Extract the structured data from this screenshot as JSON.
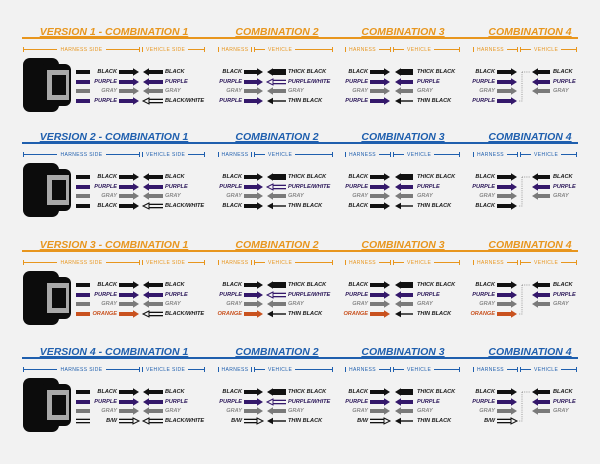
{
  "subheader": {
    "harness_side": "HARNESS SIDE",
    "vehicle_side": "VEHICLE SIDE",
    "harness": "HARNESS",
    "vehicle": "VEHICLE"
  },
  "colors": {
    "orange": "#e8961e",
    "blue": "#1f5fae",
    "black_wire": "#111111",
    "purple_wire": "#34186b",
    "gray_wire": "#7a7a7a",
    "orange_wire": "#c9521f"
  },
  "versions": [
    {
      "color": "#e8961e",
      "combinations": [
        {
          "title": "VERSION 1 - COMBINATION 1",
          "harness": [
            {
              "label": "BLACK",
              "wire": "black"
            },
            {
              "label": "PURPLE",
              "wire": "purple"
            },
            {
              "label": "GRAY",
              "wire": "gray"
            },
            {
              "label": "PURPLE",
              "wire": "purple"
            }
          ],
          "vehicle": [
            {
              "label": "BLACK",
              "wire": "black"
            },
            {
              "label": "PURPLE",
              "wire": "purple"
            },
            {
              "label": "GRAY",
              "wire": "gray"
            },
            {
              "label": "BLACK/WHITE",
              "wire": "bw"
            }
          ]
        },
        {
          "title": "COMBINATION 2",
          "harness": [
            {
              "label": "BLACK",
              "wire": "black"
            },
            {
              "label": "PURPLE",
              "wire": "purple"
            },
            {
              "label": "GRAY",
              "wire": "gray"
            },
            {
              "label": "PURPLE",
              "wire": "purple"
            }
          ],
          "vehicle": [
            {
              "label": "THICK BLACK",
              "wire": "thick"
            },
            {
              "label": "PURPLE/WHITE",
              "wire": "pw"
            },
            {
              "label": "GRAY",
              "wire": "gray"
            },
            {
              "label": "THIN BLACK",
              "wire": "thin"
            }
          ]
        },
        {
          "title": "COMBINATION 3",
          "harness": [
            {
              "label": "BLACK",
              "wire": "black"
            },
            {
              "label": "PURPLE",
              "wire": "purple"
            },
            {
              "label": "GRAY",
              "wire": "gray"
            },
            {
              "label": "PURPLE",
              "wire": "purple"
            }
          ],
          "vehicle": [
            {
              "label": "THICK BLACK",
              "wire": "thick"
            },
            {
              "label": "PURPLE",
              "wire": "purple"
            },
            {
              "label": "GRAY",
              "wire": "gray"
            },
            {
              "label": "THIN BLACK",
              "wire": "thin"
            }
          ]
        },
        {
          "title": "COMBINATION 4",
          "harness": [
            {
              "label": "BLACK",
              "wire": "black"
            },
            {
              "label": "PURPLE",
              "wire": "purple"
            },
            {
              "label": "GRAY",
              "wire": "gray"
            },
            {
              "label": "PURPLE",
              "wire": "purple"
            }
          ],
          "vehicle": [
            {
              "label": "BLACK",
              "wire": "black"
            },
            {
              "label": "PURPLE",
              "wire": "purple"
            },
            {
              "label": "GRAY",
              "wire": "gray"
            }
          ]
        }
      ]
    },
    {
      "color": "#1f5fae",
      "combinations": [
        {
          "title": "VERSION 2 - COMBINATION 1",
          "harness": [
            {
              "label": "BLACK",
              "wire": "black"
            },
            {
              "label": "PURPLE",
              "wire": "purple"
            },
            {
              "label": "GRAY",
              "wire": "gray"
            },
            {
              "label": "BLACK",
              "wire": "black"
            }
          ],
          "vehicle": [
            {
              "label": "BLACK",
              "wire": "black"
            },
            {
              "label": "PURPLE",
              "wire": "purple"
            },
            {
              "label": "GRAY",
              "wire": "gray"
            },
            {
              "label": "BLACK/WHITE",
              "wire": "bw"
            }
          ]
        },
        {
          "title": "COMBINATION 2",
          "harness": [
            {
              "label": "BLACK",
              "wire": "black"
            },
            {
              "label": "PURPLE",
              "wire": "purple"
            },
            {
              "label": "GRAY",
              "wire": "gray"
            },
            {
              "label": "BLACK",
              "wire": "black"
            }
          ],
          "vehicle": [
            {
              "label": "THICK BLACK",
              "wire": "thick"
            },
            {
              "label": "PURPLE/WHITE",
              "wire": "pw"
            },
            {
              "label": "GRAY",
              "wire": "gray"
            },
            {
              "label": "THIN BLACK",
              "wire": "thin"
            }
          ]
        },
        {
          "title": "COMBINATION 3",
          "harness": [
            {
              "label": "BLACK",
              "wire": "black"
            },
            {
              "label": "PURPLE",
              "wire": "purple"
            },
            {
              "label": "GRAY",
              "wire": "gray"
            },
            {
              "label": "BLACK",
              "wire": "black"
            }
          ],
          "vehicle": [
            {
              "label": "THICK BLACK",
              "wire": "thick"
            },
            {
              "label": "PURPLE",
              "wire": "purple"
            },
            {
              "label": "GRAY",
              "wire": "gray"
            },
            {
              "label": "THIN BLACK",
              "wire": "thin"
            }
          ]
        },
        {
          "title": "COMBINATION 4",
          "harness": [
            {
              "label": "BLACK",
              "wire": "black"
            },
            {
              "label": "PURPLE",
              "wire": "purple"
            },
            {
              "label": "GRAY",
              "wire": "gray"
            },
            {
              "label": "BLACK",
              "wire": "black"
            }
          ],
          "vehicle": [
            {
              "label": "BLACK",
              "wire": "black"
            },
            {
              "label": "PURPLE",
              "wire": "purple"
            },
            {
              "label": "GRAY",
              "wire": "gray"
            }
          ]
        }
      ]
    },
    {
      "color": "#e8961e",
      "combinations": [
        {
          "title": "VERSION 3 - COMBINATION 1",
          "harness": [
            {
              "label": "BLACK",
              "wire": "black"
            },
            {
              "label": "PURPLE",
              "wire": "purple"
            },
            {
              "label": "GRAY",
              "wire": "gray"
            },
            {
              "label": "ORANGE",
              "wire": "orange"
            }
          ],
          "vehicle": [
            {
              "label": "BLACK",
              "wire": "black"
            },
            {
              "label": "PURPLE",
              "wire": "purple"
            },
            {
              "label": "GRAY",
              "wire": "gray"
            },
            {
              "label": "BLACK/WHITE",
              "wire": "bw"
            }
          ]
        },
        {
          "title": "COMBINATION 2",
          "harness": [
            {
              "label": "BLACK",
              "wire": "black"
            },
            {
              "label": "PURPLE",
              "wire": "purple"
            },
            {
              "label": "GRAY",
              "wire": "gray"
            },
            {
              "label": "ORANGE",
              "wire": "orange"
            }
          ],
          "vehicle": [
            {
              "label": "THICK BLACK",
              "wire": "thick"
            },
            {
              "label": "PURPLE/WHITE",
              "wire": "pw"
            },
            {
              "label": "GRAY",
              "wire": "gray"
            },
            {
              "label": "THIN BLACK",
              "wire": "thin"
            }
          ]
        },
        {
          "title": "COMBINATION 3",
          "harness": [
            {
              "label": "BLACK",
              "wire": "black"
            },
            {
              "label": "PURPLE",
              "wire": "purple"
            },
            {
              "label": "GRAY",
              "wire": "gray"
            },
            {
              "label": "ORANGE",
              "wire": "orange"
            }
          ],
          "vehicle": [
            {
              "label": "THICK BLACK",
              "wire": "thick"
            },
            {
              "label": "PURPLE",
              "wire": "purple"
            },
            {
              "label": "GRAY",
              "wire": "gray"
            },
            {
              "label": "THIN BLACK",
              "wire": "thin"
            }
          ]
        },
        {
          "title": "COMBINATION 4",
          "harness": [
            {
              "label": "BLACK",
              "wire": "black"
            },
            {
              "label": "PURPLE",
              "wire": "purple"
            },
            {
              "label": "GRAY",
              "wire": "gray"
            },
            {
              "label": "ORANGE",
              "wire": "orange"
            }
          ],
          "vehicle": [
            {
              "label": "BLACK",
              "wire": "black"
            },
            {
              "label": "PURPLE",
              "wire": "purple"
            },
            {
              "label": "GRAY",
              "wire": "gray"
            }
          ]
        }
      ]
    },
    {
      "color": "#1f5fae",
      "combinations": [
        {
          "title": "VERSION 4 - COMBINATION 1",
          "harness": [
            {
              "label": "BLACK",
              "wire": "black"
            },
            {
              "label": "PURPLE",
              "wire": "purple"
            },
            {
              "label": "GRAY",
              "wire": "gray"
            },
            {
              "label": "B/W",
              "wire": "bw"
            }
          ],
          "vehicle": [
            {
              "label": "BLACK",
              "wire": "black"
            },
            {
              "label": "PURPLE",
              "wire": "purple"
            },
            {
              "label": "GRAY",
              "wire": "gray"
            },
            {
              "label": "BLACK/WHITE",
              "wire": "bw"
            }
          ]
        },
        {
          "title": "COMBINATION 2",
          "harness": [
            {
              "label": "BLACK",
              "wire": "black"
            },
            {
              "label": "PURPLE",
              "wire": "purple"
            },
            {
              "label": "GRAY",
              "wire": "gray"
            },
            {
              "label": "B/W",
              "wire": "bw"
            }
          ],
          "vehicle": [
            {
              "label": "THICK BLACK",
              "wire": "thick"
            },
            {
              "label": "PURPLE/WHITE",
              "wire": "pw"
            },
            {
              "label": "GRAY",
              "wire": "gray"
            },
            {
              "label": "THIN BLACK",
              "wire": "thin"
            }
          ]
        },
        {
          "title": "COMBINATION 3",
          "harness": [
            {
              "label": "BLACK",
              "wire": "black"
            },
            {
              "label": "PURPLE",
              "wire": "purple"
            },
            {
              "label": "GRAY",
              "wire": "gray"
            },
            {
              "label": "B/W",
              "wire": "bw"
            }
          ],
          "vehicle": [
            {
              "label": "THICK BLACK",
              "wire": "thick"
            },
            {
              "label": "PURPLE",
              "wire": "purple"
            },
            {
              "label": "GRAY",
              "wire": "gray"
            },
            {
              "label": "THIN BLACK",
              "wire": "thin"
            }
          ]
        },
        {
          "title": "COMBINATION 4",
          "harness": [
            {
              "label": "BLACK",
              "wire": "black"
            },
            {
              "label": "PURPLE",
              "wire": "purple"
            },
            {
              "label": "GRAY",
              "wire": "gray"
            },
            {
              "label": "B/W",
              "wire": "bw"
            }
          ],
          "vehicle": [
            {
              "label": "BLACK",
              "wire": "black"
            },
            {
              "label": "PURPLE",
              "wire": "purple"
            },
            {
              "label": "GRAY",
              "wire": "gray"
            }
          ]
        }
      ]
    }
  ]
}
